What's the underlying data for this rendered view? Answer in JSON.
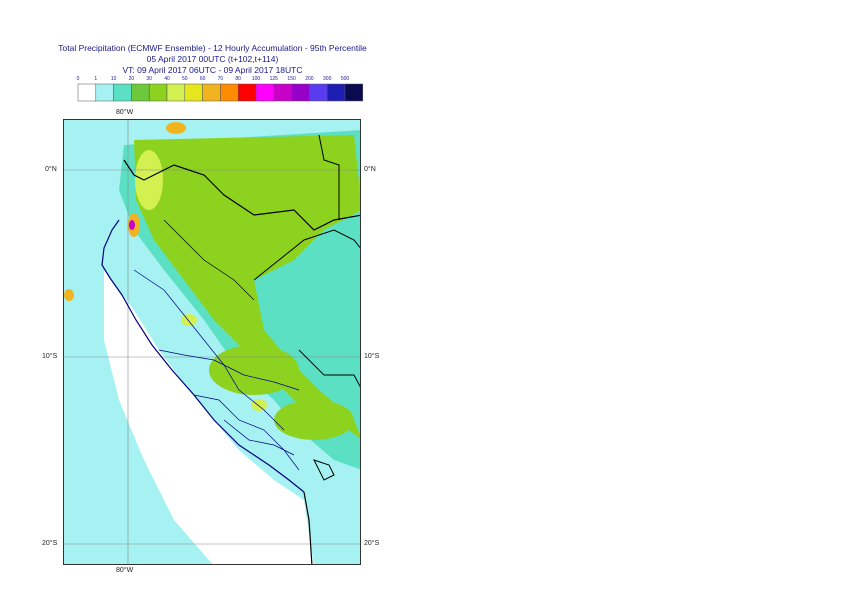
{
  "title": {
    "line1": "Total Precipitation (ECMWF Ensemble) - 12 Hourly Accumulation - 95th Percentile",
    "line2": "05 April 2017 00UTC (t+102,t+114)",
    "line3": "VT: 09 April 2017 06UTC - 09 April 2017 18UTC"
  },
  "legend": {
    "breaks": [
      "0",
      "1",
      "10",
      "20",
      "30",
      "40",
      "50",
      "60",
      "70",
      "80",
      "100",
      "125",
      "150",
      "200",
      "300",
      "500"
    ],
    "colors": [
      "#ffffff",
      "#a6f2f2",
      "#5ce0c4",
      "#6ec83c",
      "#8cd21e",
      "#d2f050",
      "#e6e61e",
      "#f0b41e",
      "#ff8c00",
      "#ff0000",
      "#ff00ff",
      "#c800c8",
      "#9600c8",
      "#5a3cf0",
      "#1e1eb4",
      "#0a0a50"
    ]
  },
  "axes": {
    "top_lon": "80°W",
    "bottom_lon": "80°W",
    "lat_labels": [
      "0°N",
      "10°S",
      "20°S"
    ]
  },
  "colors": {
    "ocean_low": "#a6f2f2",
    "light": "#5ce0c4",
    "green": "#8cd21e",
    "yellow": "#d2f050",
    "orange": "#f0b41e",
    "red": "#ff0000",
    "magenta": "#c800c8",
    "coast": "#000080",
    "border": "#000000"
  }
}
